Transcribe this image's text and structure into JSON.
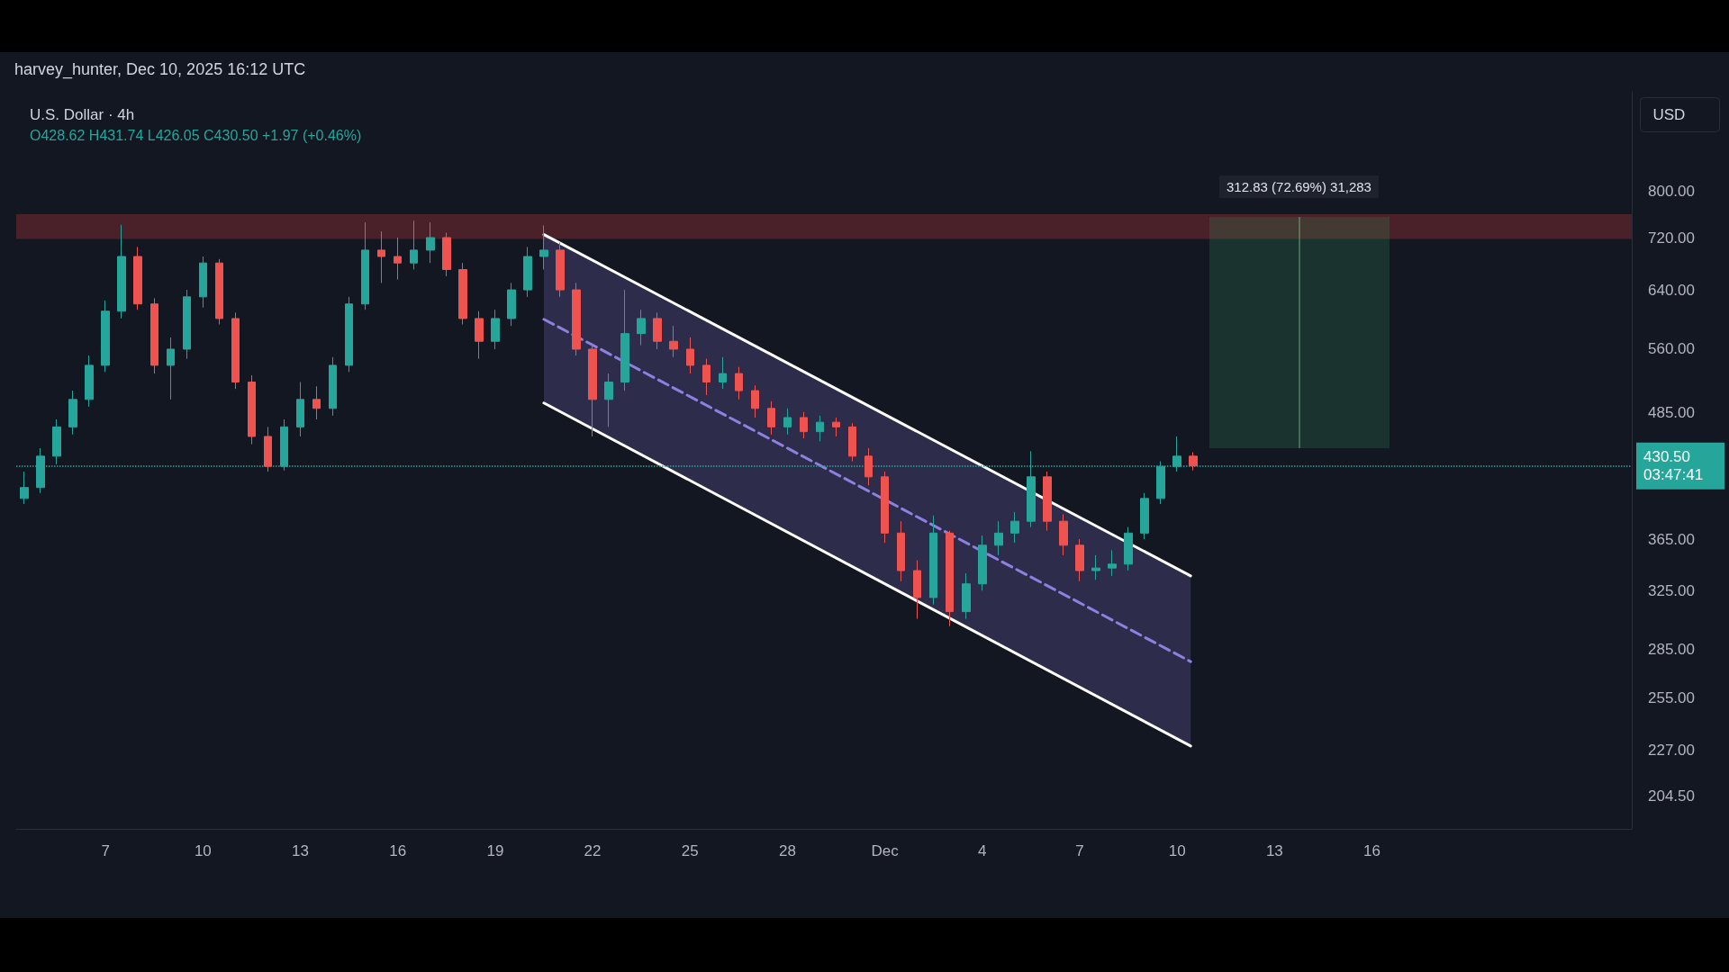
{
  "chart_data": {
    "type": "candlestick",
    "title": "U.S. Dollar · 4h",
    "subtitle": "O428.62 H431.74 L426.05 C430.50 +1.97 (+0.46%)",
    "annotations": [
      "harvey_hunter, Dec 10, 2025 16:12 UTC",
      "USD",
      "312.83 (72.69%) 31,283"
    ],
    "log": "y",
    "marker": "none",
    "xlim": [
      "2025-11-04T06:00",
      "2025-12-24T00:00"
    ],
    "xticks": [
      {
        "value": "2025-11-07",
        "label": "7"
      },
      {
        "value": "2025-11-10",
        "label": "10"
      },
      {
        "value": "2025-11-13",
        "label": "13"
      },
      {
        "value": "2025-11-16",
        "label": "16"
      },
      {
        "value": "2025-11-19",
        "label": "19"
      },
      {
        "value": "2025-11-22",
        "label": "22"
      },
      {
        "value": "2025-11-25",
        "label": "25"
      },
      {
        "value": "2025-11-28",
        "label": "28"
      },
      {
        "value": "2025-12-01",
        "label": "Dec"
      },
      {
        "value": "2025-12-04",
        "label": "4"
      },
      {
        "value": "2025-12-07",
        "label": "7"
      },
      {
        "value": "2025-12-10",
        "label": "10"
      },
      {
        "value": "2025-12-13",
        "label": "13"
      },
      {
        "value": "2025-12-16",
        "label": "16"
      }
    ],
    "ylim": [
      190,
      1000
    ],
    "yticks": [
      {
        "value": 204.5,
        "label": "204.50"
      },
      {
        "value": 227,
        "label": "227.00"
      },
      {
        "value": 255,
        "label": "255.00"
      },
      {
        "value": 285,
        "label": "285.00"
      },
      {
        "value": 325,
        "label": "325.00"
      },
      {
        "value": 365,
        "label": "365.00"
      },
      {
        "value": 485,
        "label": "485.00"
      },
      {
        "value": 560,
        "label": "560.00"
      },
      {
        "value": 640,
        "label": "640.00"
      },
      {
        "value": 720,
        "label": "720.00"
      },
      {
        "value": 800,
        "label": "800.00"
      }
    ],
    "bands": [
      {
        "axis": "y",
        "from": 718,
        "to": 759,
        "color": "#4a2029"
      }
    ],
    "ref_lines": [
      {
        "axis": "y",
        "value": 430.5,
        "label": "430.50 03:47:41",
        "color": "#26a69a",
        "line_style": "dotted"
      }
    ],
    "series": [
      {
        "type": "line",
        "color": "#ffffff",
        "line_style": "solid",
        "x": [
          "2025-11-20T12:00",
          "2025-12-10T10:00"
        ],
        "values": [
          725,
          336
        ]
      },
      {
        "type": "line",
        "color": "#8f7fe0",
        "line_style": "dashed",
        "x": [
          "2025-11-20T12:00",
          "2025-12-10T10:00"
        ],
        "values": [
          599,
          277
        ],
        "lower": [
          496,
          229
        ],
        "upper": [
          725,
          336
        ]
      },
      {
        "type": "line",
        "color": "#ffffff",
        "line_style": "solid",
        "x": [
          "2025-11-20T12:00",
          "2025-12-10T10:00"
        ],
        "values": [
          496,
          229
        ]
      },
      {
        "x": [
          "2025-11-04T12:00",
          "2025-11-05T00:00",
          "2025-11-05T12:00",
          "2025-11-06T00:00",
          "2025-11-06T12:00",
          "2025-11-07T00:00",
          "2025-11-07T12:00",
          "2025-11-08T00:00",
          "2025-11-08T12:00",
          "2025-11-09T00:00",
          "2025-11-09T12:00",
          "2025-11-10T00:00",
          "2025-11-10T12:00",
          "2025-11-11T00:00",
          "2025-11-11T12:00",
          "2025-11-12T00:00",
          "2025-11-12T12:00",
          "2025-11-13T00:00",
          "2025-11-13T12:00",
          "2025-11-14T00:00",
          "2025-11-14T12:00",
          "2025-11-15T00:00",
          "2025-11-15T12:00",
          "2025-11-16T00:00",
          "2025-11-16T12:00",
          "2025-11-17T00:00",
          "2025-11-17T12:00",
          "2025-11-18T00:00",
          "2025-11-18T12:00",
          "2025-11-19T00:00",
          "2025-11-19T12:00",
          "2025-11-20T00:00",
          "2025-11-20T12:00",
          "2025-11-21T00:00",
          "2025-11-21T12:00",
          "2025-11-22T00:00",
          "2025-11-22T12:00",
          "2025-11-23T00:00",
          "2025-11-23T12:00",
          "2025-11-24T00:00",
          "2025-11-24T12:00",
          "2025-11-25T00:00",
          "2025-11-25T12:00",
          "2025-11-26T00:00",
          "2025-11-26T12:00",
          "2025-11-27T00:00",
          "2025-11-27T12:00",
          "2025-11-28T00:00",
          "2025-11-28T12:00",
          "2025-11-29T00:00",
          "2025-11-29T12:00",
          "2025-11-30T00:00",
          "2025-11-30T12:00",
          "2025-12-01T00:00",
          "2025-12-01T12:00",
          "2025-12-02T00:00",
          "2025-12-02T12:00",
          "2025-12-03T00:00",
          "2025-12-03T12:00",
          "2025-12-04T00:00",
          "2025-12-04T12:00",
          "2025-12-05T00:00",
          "2025-12-05T12:00",
          "2025-12-06T00:00",
          "2025-12-06T12:00",
          "2025-12-07T00:00",
          "2025-12-07T12:00",
          "2025-12-08T00:00",
          "2025-12-08T12:00",
          "2025-12-09T00:00",
          "2025-12-09T12:00",
          "2025-12-10T00:00",
          "2025-12-10T12:00"
        ],
        "ohlc": [
          [
            400,
            425,
            395,
            410
          ],
          [
            410,
            448,
            405,
            440
          ],
          [
            440,
            478,
            432,
            470
          ],
          [
            470,
            510,
            462,
            500
          ],
          [
            500,
            552,
            492,
            540
          ],
          [
            540,
            625,
            532,
            610
          ],
          [
            610,
            741,
            600,
            690
          ],
          [
            690,
            705,
            612,
            620
          ],
          [
            620,
            628,
            530,
            540
          ],
          [
            540,
            575,
            500,
            560
          ],
          [
            560,
            640,
            548,
            630
          ],
          [
            630,
            690,
            615,
            680
          ],
          [
            680,
            686,
            592,
            600
          ],
          [
            600,
            608,
            512,
            520
          ],
          [
            520,
            528,
            452,
            460
          ],
          [
            460,
            470,
            425,
            430
          ],
          [
            430,
            478,
            426,
            470
          ],
          [
            470,
            520,
            460,
            500
          ],
          [
            500,
            515,
            478,
            490
          ],
          [
            490,
            550,
            482,
            540
          ],
          [
            540,
            630,
            532,
            620
          ],
          [
            620,
            745,
            612,
            700
          ],
          [
            700,
            730,
            650,
            690
          ],
          [
            690,
            720,
            655,
            680
          ],
          [
            680,
            748,
            670,
            700
          ],
          [
            700,
            745,
            680,
            720
          ],
          [
            720,
            728,
            660,
            670
          ],
          [
            670,
            680,
            592,
            600
          ],
          [
            600,
            610,
            548,
            570
          ],
          [
            570,
            612,
            560,
            600
          ],
          [
            600,
            650,
            590,
            640
          ],
          [
            640,
            705,
            630,
            690
          ],
          [
            690,
            740,
            670,
            700
          ],
          [
            700,
            712,
            630,
            640
          ],
          [
            640,
            650,
            552,
            560
          ],
          [
            560,
            568,
            460,
            500
          ],
          [
            500,
            530,
            470,
            520
          ],
          [
            520,
            640,
            510,
            580
          ],
          [
            580,
            612,
            565,
            600
          ],
          [
            600,
            608,
            560,
            570
          ],
          [
            570,
            590,
            550,
            560
          ],
          [
            560,
            575,
            530,
            540
          ],
          [
            540,
            548,
            505,
            520
          ],
          [
            520,
            550,
            512,
            530
          ],
          [
            530,
            538,
            500,
            510
          ],
          [
            510,
            516,
            480,
            490
          ],
          [
            490,
            498,
            462,
            470
          ],
          [
            470,
            490,
            462,
            480
          ],
          [
            480,
            486,
            458,
            465
          ],
          [
            465,
            482,
            455,
            475
          ],
          [
            475,
            480,
            460,
            470
          ],
          [
            470,
            474,
            435,
            440
          ],
          [
            440,
            448,
            412,
            420
          ],
          [
            420,
            425,
            362,
            370
          ],
          [
            370,
            380,
            332,
            340
          ],
          [
            340,
            348,
            305,
            320
          ],
          [
            320,
            385,
            315,
            370
          ],
          [
            370,
            372,
            300,
            310
          ],
          [
            310,
            338,
            305,
            330
          ],
          [
            330,
            368,
            325,
            360
          ],
          [
            360,
            380,
            352,
            370
          ],
          [
            370,
            388,
            362,
            380
          ],
          [
            380,
            445,
            375,
            420
          ],
          [
            420,
            425,
            372,
            380
          ],
          [
            380,
            386,
            352,
            360
          ],
          [
            360,
            365,
            332,
            340
          ],
          [
            340,
            352,
            333,
            342
          ],
          [
            342,
            356,
            336,
            345
          ],
          [
            345,
            375,
            340,
            370
          ],
          [
            370,
            405,
            365,
            400
          ],
          [
            400,
            435,
            395,
            430
          ],
          [
            430,
            460,
            425,
            440
          ],
          [
            440,
            444,
            426.05,
            430.5
          ]
        ],
        "colors": [
          "#26a69a",
          "#26a69a",
          "#26a69a",
          "#26a69a",
          "#26a69a",
          "#26a69a",
          "#26a69a",
          "#ef5350",
          "#ef5350",
          "#26a69a",
          "#26a69a",
          "#26a69a",
          "#ef5350",
          "#ef5350",
          "#ef5350",
          "#ef5350",
          "#26a69a",
          "#26a69a",
          "#ef5350",
          "#26a69a",
          "#26a69a",
          "#26a69a",
          "#ef5350",
          "#ef5350",
          "#26a69a",
          "#26a69a",
          "#ef5350",
          "#ef5350",
          "#ef5350",
          "#26a69a",
          "#26a69a",
          "#26a69a",
          "#26a69a",
          "#ef5350",
          "#ef5350",
          "#ef5350",
          "#26a69a",
          "#26a69a",
          "#26a69a",
          "#ef5350",
          "#ef5350",
          "#ef5350",
          "#ef5350",
          "#26a69a",
          "#ef5350",
          "#ef5350",
          "#ef5350",
          "#26a69a",
          "#ef5350",
          "#26a69a",
          "#ef5350",
          "#ef5350",
          "#ef5350",
          "#ef5350",
          "#ef5350",
          "#ef5350",
          "#26a69a",
          "#ef5350",
          "#26a69a",
          "#26a69a",
          "#26a69a",
          "#26a69a",
          "#26a69a",
          "#ef5350",
          "#ef5350",
          "#ef5350",
          "#26a69a",
          "#26a69a",
          "#26a69a",
          "#26a69a",
          "#26a69a",
          "#26a69a",
          "#ef5350"
        ]
      }
    ]
  }
}
